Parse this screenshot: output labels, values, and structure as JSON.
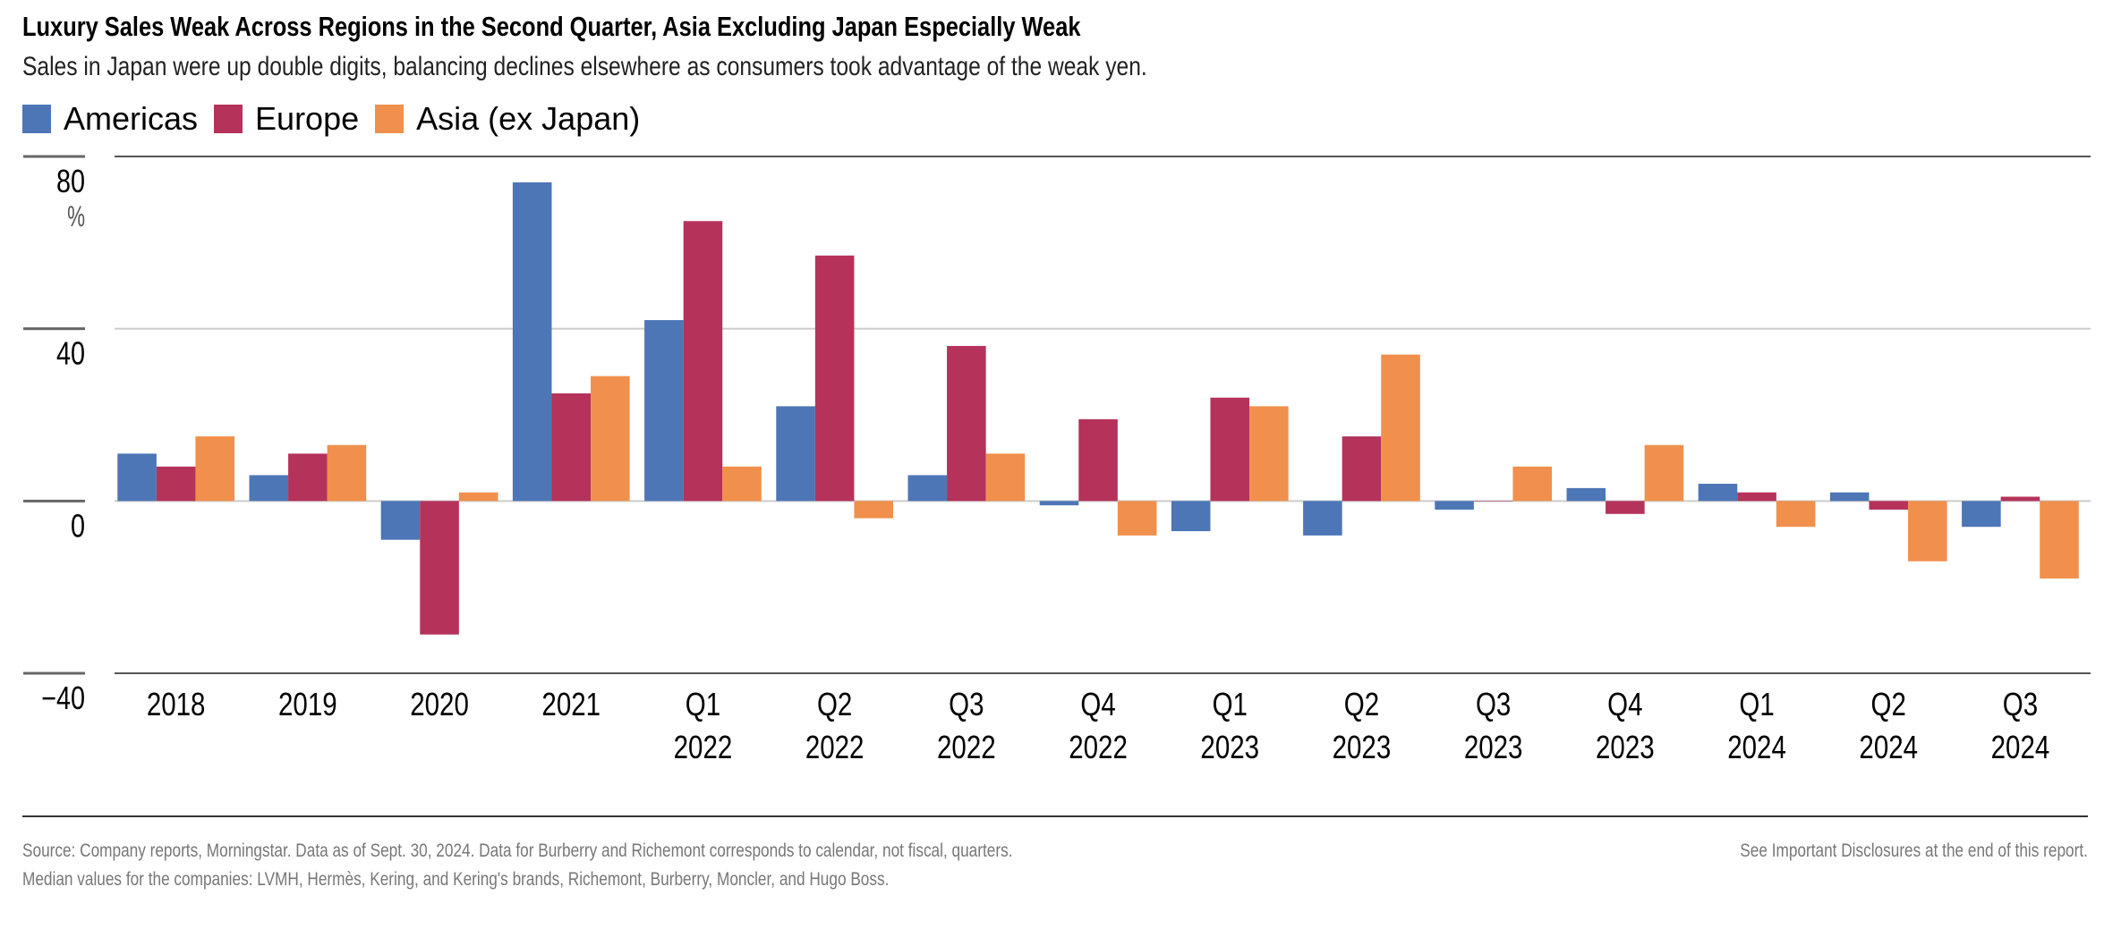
{
  "header": {
    "title": "Luxury Sales Weak Across Regions in the Second Quarter, Asia Excluding Japan Especially Weak",
    "subtitle": "Sales in Japan were up double digits, balancing declines elsewhere as consumers took advantage of the weak yen."
  },
  "chart_data": {
    "type": "bar",
    "title": "Luxury Sales Weak Across Regions in the Second Quarter, Asia Excluding Japan Especially Weak",
    "subtitle": "Sales in Japan were up double digits, balancing declines elsewhere as consumers took advantage of the weak yen.",
    "ylabel": "%",
    "ylim": [
      -40,
      80
    ],
    "yticks": [
      80,
      40,
      0,
      -40
    ],
    "ytick_labels": [
      "80",
      "40",
      "0",
      "−40"
    ],
    "grid": true,
    "legend_position": "top-left",
    "categories": [
      [
        "2018"
      ],
      [
        "2019"
      ],
      [
        "2020"
      ],
      [
        "2021"
      ],
      [
        "Q1",
        "2022"
      ],
      [
        "Q2",
        "2022"
      ],
      [
        "Q3",
        "2022"
      ],
      [
        "Q4",
        "2022"
      ],
      [
        "Q1",
        "2023"
      ],
      [
        "Q2",
        "2023"
      ],
      [
        "Q3",
        "2023"
      ],
      [
        "Q4",
        "2023"
      ],
      [
        "Q1",
        "2024"
      ],
      [
        "Q2",
        "2024"
      ],
      [
        "Q3",
        "2024"
      ]
    ],
    "series": [
      {
        "name": "Americas",
        "color": "#4c76b6",
        "values": [
          11,
          6,
          -9,
          74,
          42,
          22,
          6,
          -1,
          -7,
          -8,
          -2,
          3,
          4,
          2,
          -6
        ]
      },
      {
        "name": "Europe",
        "color": "#b5325a",
        "values": [
          8,
          11,
          -31,
          25,
          65,
          57,
          36,
          19,
          24,
          15,
          0,
          -3,
          2,
          -2,
          1
        ]
      },
      {
        "name": "Asia (ex Japan)",
        "color": "#f0904c",
        "values": [
          15,
          13,
          2,
          29,
          8,
          -4,
          11,
          -8,
          22,
          34,
          8,
          13,
          -6,
          -14,
          -18
        ]
      }
    ]
  },
  "footer": {
    "source": "Source: Company reports, Morningstar. Data as of Sept. 30, 2024. Data for Burberry and Richemont corresponds to calendar, not fiscal, quarters.",
    "note": "Median values for the companies: LVMH, Hermès, Kering, and Kering's brands, Richemont, Burberry, Moncler, and Hugo Boss.",
    "disclosure": "See Important Disclosures at the end of this report."
  }
}
